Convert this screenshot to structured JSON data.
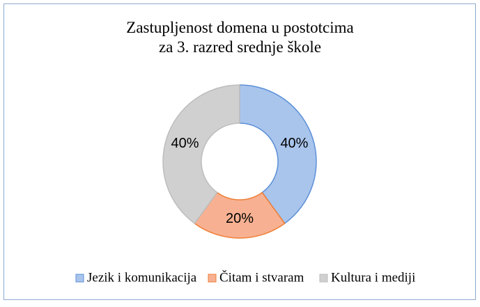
{
  "chart_data": {
    "type": "donut",
    "title": "Zastupljenost  domena u postotcima\nza 3. razred srednje škole",
    "categories": [
      "Jezik i komunikacija",
      "Čitam i stvaram",
      "Kultura i mediji"
    ],
    "values": [
      40,
      20,
      40
    ],
    "value_labels": [
      "40%",
      "20%",
      "40%"
    ],
    "colors": [
      "#a9c5ec",
      "#f7b192",
      "#d0d0d0"
    ],
    "stroke_colors": [
      "#5b8fd8",
      "#ee7e36",
      "#bdbdbd"
    ],
    "legend": "bottom"
  }
}
